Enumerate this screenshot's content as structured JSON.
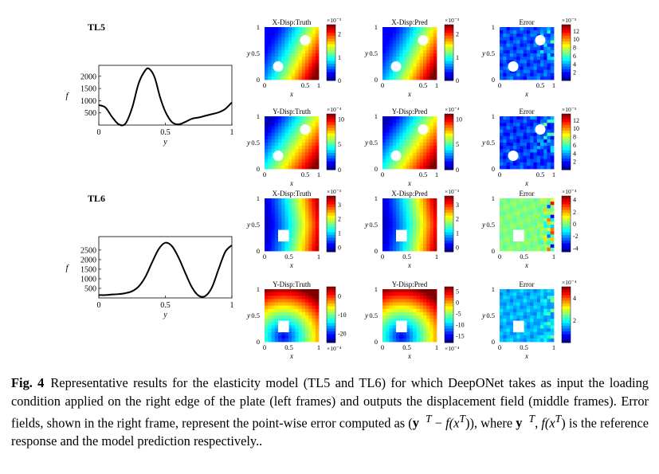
{
  "figure": {
    "rows": [
      {
        "label": "TL5",
        "chart_data": {
          "type": "line",
          "title": "",
          "xlabel": "y",
          "ylabel": "f",
          "xlim": [
            0,
            1
          ],
          "ylim": [
            0,
            2450
          ],
          "xticks": [
            "0",
            "0.5",
            "1"
          ],
          "yticks": [
            "500",
            "1000",
            "1500",
            "2000"
          ],
          "ytick_values": [
            500,
            1000,
            1500,
            2000
          ],
          "x": [
            0,
            0.05,
            0.1,
            0.15,
            0.2,
            0.25,
            0.3,
            0.35,
            0.38,
            0.42,
            0.46,
            0.5,
            0.55,
            0.6,
            0.65,
            0.7,
            0.75,
            0.8,
            0.85,
            0.9,
            0.95,
            1.0
          ],
          "y": [
            820,
            720,
            330,
            30,
            60,
            700,
            1720,
            2250,
            2300,
            1950,
            1150,
            550,
            120,
            30,
            130,
            260,
            310,
            380,
            450,
            520,
            660,
            930
          ]
        },
        "panels": [
          {
            "title": "X-Disp:Truth",
            "exp": "×10⁻³",
            "ticks": [
              "2",
              "1",
              "0"
            ],
            "tick_values": [
              2,
              1,
              0
            ],
            "range": [
              0,
              2.4
            ],
            "invert": false,
            "shape": "circles",
            "field": "diag-x"
          },
          {
            "title": "X-Disp:Pred",
            "exp": "×10⁻³",
            "ticks": [
              "2",
              "1",
              "0"
            ],
            "tick_values": [
              2,
              1,
              0
            ],
            "range": [
              0,
              2.4
            ],
            "invert": false,
            "shape": "circles",
            "field": "diag-x"
          },
          {
            "title": "Error",
            "exp": "×10⁻⁵",
            "ticks": [
              "12",
              "10",
              "8",
              "6",
              "4",
              "2"
            ],
            "tick_values": [
              12,
              10,
              8,
              6,
              4,
              2
            ],
            "range": [
              0,
              13.5
            ],
            "invert": false,
            "shape": "circles",
            "field": "err-a"
          },
          {
            "title": "Y-Disp:Truth",
            "exp": "×10⁻⁴",
            "ticks": [
              "10",
              "5",
              "0"
            ],
            "tick_values": [
              10,
              5,
              0
            ],
            "range": [
              0,
              11
            ],
            "invert": false,
            "shape": "circles",
            "field": "diag-y"
          },
          {
            "title": "Y-Disp:Pred",
            "exp": "×10⁻⁴",
            "ticks": [
              "10",
              "5",
              "0"
            ],
            "tick_values": [
              10,
              5,
              0
            ],
            "range": [
              0,
              11
            ],
            "invert": false,
            "shape": "circles",
            "field": "diag-y"
          },
          {
            "title": "Error",
            "exp": "×10⁻⁵",
            "ticks": [
              "12",
              "10",
              "8",
              "6",
              "4",
              "2"
            ],
            "tick_values": [
              12,
              10,
              8,
              6,
              4,
              2
            ],
            "range": [
              0,
              13.5
            ],
            "invert": false,
            "shape": "circles",
            "field": "err-b"
          }
        ]
      },
      {
        "label": "TL6",
        "chart_data": {
          "type": "line",
          "title": "",
          "xlabel": "y",
          "ylabel": "f",
          "xlim": [
            0,
            1
          ],
          "ylim": [
            0,
            3200
          ],
          "xticks": [
            "0",
            "0.5",
            "1"
          ],
          "yticks": [
            "500",
            "1000",
            "1500",
            "2000",
            "2500"
          ],
          "ytick_values": [
            500,
            1000,
            1500,
            2000,
            2500
          ],
          "x": [
            0,
            0.05,
            0.1,
            0.15,
            0.2,
            0.25,
            0.3,
            0.35,
            0.4,
            0.45,
            0.5,
            0.55,
            0.6,
            0.65,
            0.7,
            0.75,
            0.8,
            0.85,
            0.9,
            0.95,
            1.0
          ],
          "y": [
            150,
            150,
            180,
            200,
            250,
            350,
            600,
            1100,
            1850,
            2550,
            2880,
            2700,
            2100,
            1300,
            550,
            120,
            100,
            550,
            1500,
            2400,
            2750
          ]
        },
        "panels": [
          {
            "title": "X-Disp:Truth",
            "exp": "×10⁻³",
            "ticks": [
              "3",
              "2",
              "1",
              "0"
            ],
            "tick_values": [
              3,
              2,
              1,
              0
            ],
            "range": [
              -0.3,
              3.6
            ],
            "invert": false,
            "shape": "square",
            "field": "rad-x"
          },
          {
            "title": "X-Disp:Pred",
            "exp": "×10⁻³",
            "ticks": [
              "3",
              "2",
              "1",
              "0"
            ],
            "tick_values": [
              3,
              2,
              1,
              0
            ],
            "range": [
              -0.3,
              3.6
            ],
            "invert": false,
            "shape": "square",
            "field": "rad-x"
          },
          {
            "title": "Error",
            "exp": "×10⁻⁴",
            "ticks": [
              "4",
              "2",
              "0",
              "-2",
              "-4"
            ],
            "tick_values": [
              4,
              2,
              0,
              -2,
              -4
            ],
            "range": [
              -4.6,
              4.6
            ],
            "invert": false,
            "shape": "square",
            "field": "err-c"
          },
          {
            "title": "Y-Disp:Truth",
            "exp": "×10⁻⁴",
            "ticks": [
              "0",
              "-10",
              "-20"
            ],
            "tick_values": [
              0,
              -10,
              -20
            ],
            "range": [
              -25,
              5
            ],
            "invert": true,
            "shape": "square",
            "field": "rad-y",
            "exp_bottom": true
          },
          {
            "title": "Y-Disp:Pred",
            "exp": "×10⁻⁴",
            "ticks": [
              "5",
              "0",
              "-5",
              "-10",
              "-15"
            ],
            "tick_values": [
              5,
              0,
              -5,
              -10,
              -15
            ],
            "range": [
              -18,
              7
            ],
            "invert": true,
            "shape": "square",
            "field": "rad-y",
            "exp_bottom": true
          },
          {
            "title": "Error",
            "exp": "×10⁻⁴",
            "ticks": [
              "4",
              "2"
            ],
            "tick_values": [
              4,
              2
            ],
            "range": [
              0,
              5
            ],
            "invert": false,
            "shape": "square",
            "field": "err-d"
          }
        ]
      }
    ],
    "heat_axes": {
      "xlabel": "x",
      "ylabel": "y",
      "ticks_05": [
        "0",
        "0.5",
        "1"
      ],
      "xticks_05_1": [
        "0",
        "0.5",
        "1"
      ]
    }
  },
  "caption": {
    "label": "Fig. 4",
    "text1": "Representative results for the elasticity model (TL5 and TL6) for which DeepONet takes as input the loading condition applied on the right edge of the plate (left frames) and outputs the displacement field (middle frames). Error fields, shown in the right frame, represent the point-wise error computed as (",
    "math1": "y",
    "sup1": "T",
    "text2": " − ",
    "math2": "f(x",
    "sup2": "T",
    "text3": ")), where ",
    "math3": "y",
    "sup3": "T",
    "text4": ", ",
    "math4": "f(x",
    "sup4": "T",
    "text5": ") is the reference response and the model prediction respectively.."
  }
}
